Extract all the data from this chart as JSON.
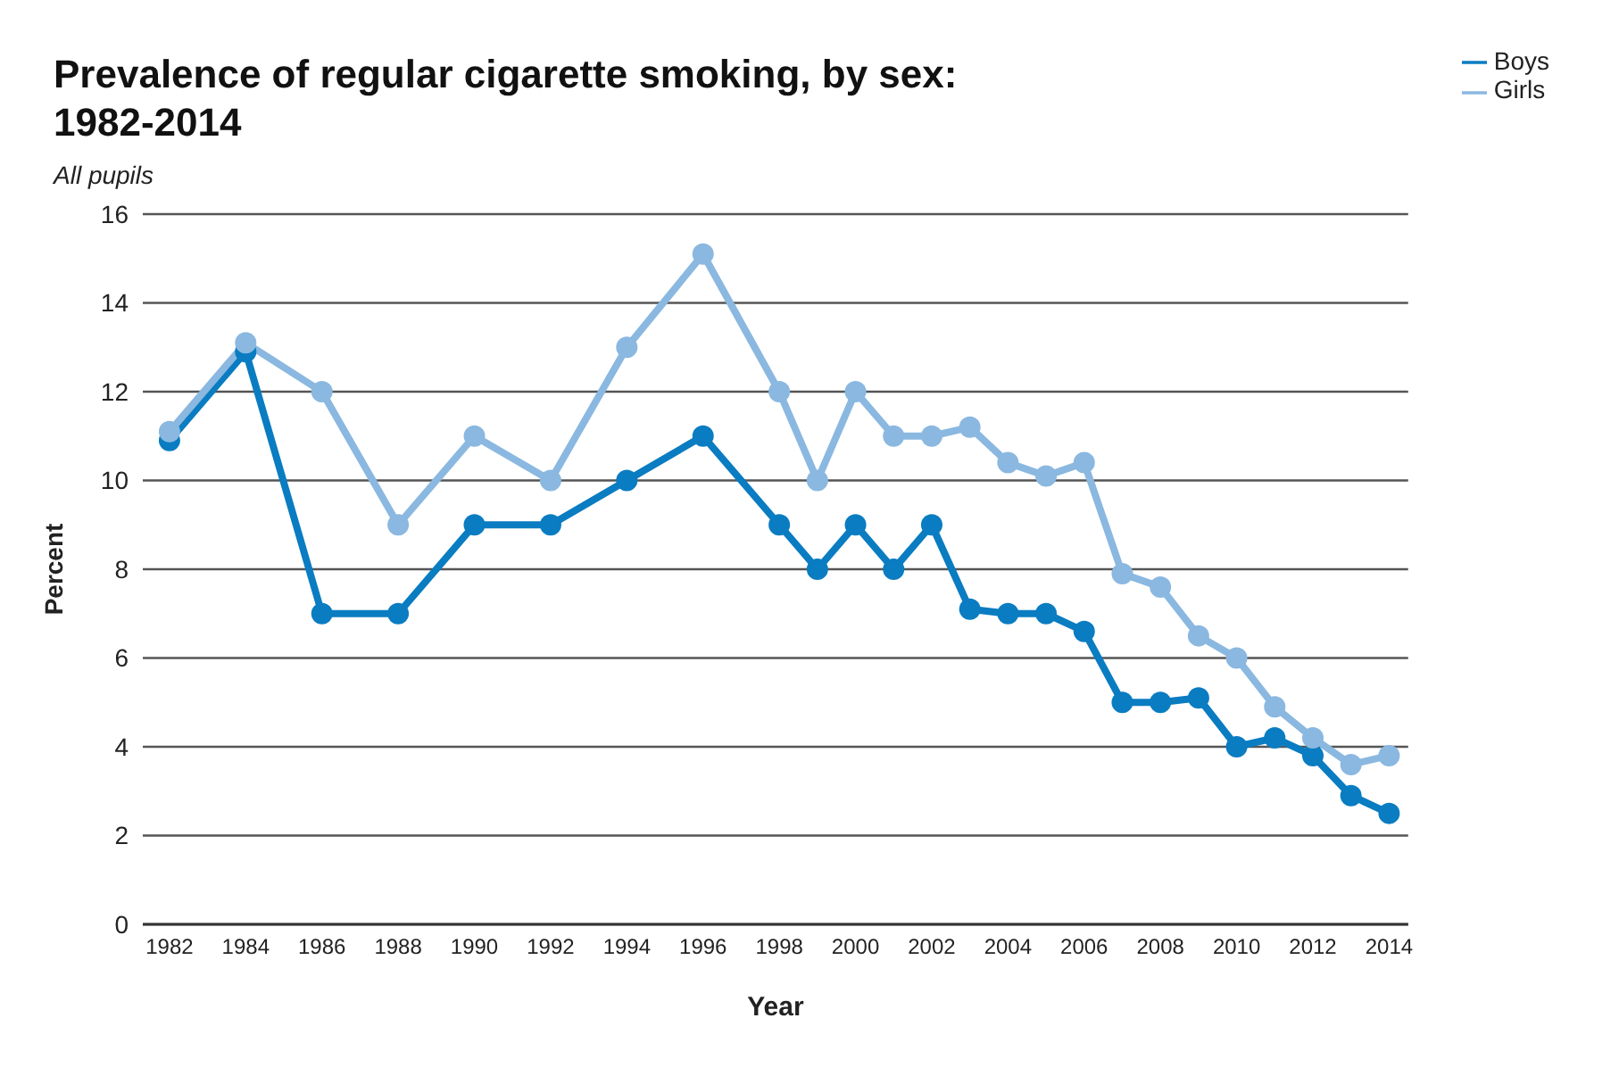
{
  "chart_data": {
    "type": "line",
    "title": "Prevalence of regular cigarette smoking, by sex:\n1982-2014",
    "subtitle": "All pupils",
    "xlabel": "Year",
    "ylabel": "Percent",
    "x": [
      1982,
      1984,
      1986,
      1988,
      1990,
      1992,
      1994,
      1996,
      1998,
      1999,
      2000,
      2001,
      2002,
      2003,
      2004,
      2005,
      2006,
      2007,
      2008,
      2009,
      2010,
      2011,
      2012,
      2013,
      2014
    ],
    "series": [
      {
        "name": "Boys",
        "color": "#0a7cc1",
        "values": [
          10.9,
          12.9,
          7,
          7,
          9,
          9,
          10,
          11,
          9,
          8,
          9,
          8,
          9,
          7.1,
          7,
          7,
          6.6,
          5,
          5,
          5.1,
          4,
          4.2,
          3.8,
          2.9,
          2.5
        ]
      },
      {
        "name": "Girls",
        "color": "#8ab8e0",
        "values": [
          11.1,
          13.1,
          12,
          9,
          11,
          10,
          13,
          15.1,
          12,
          10,
          12,
          11,
          11,
          11.2,
          10.4,
          10.1,
          10.4,
          7.9,
          7.6,
          6.5,
          6,
          4.9,
          4.2,
          3.6,
          3.8
        ]
      }
    ],
    "xlim": [
      1981.3,
      2014.5
    ],
    "xticks": [
      1982,
      1984,
      1986,
      1988,
      1990,
      1992,
      1994,
      1996,
      1998,
      2000,
      2002,
      2004,
      2006,
      2008,
      2010,
      2012,
      2014
    ],
    "ylim": [
      0,
      16
    ],
    "yticks": [
      0,
      2,
      4,
      6,
      8,
      10,
      12,
      14,
      16
    ],
    "grid": "y",
    "legend": "top right",
    "marker": "circle",
    "line_style": "solid"
  }
}
